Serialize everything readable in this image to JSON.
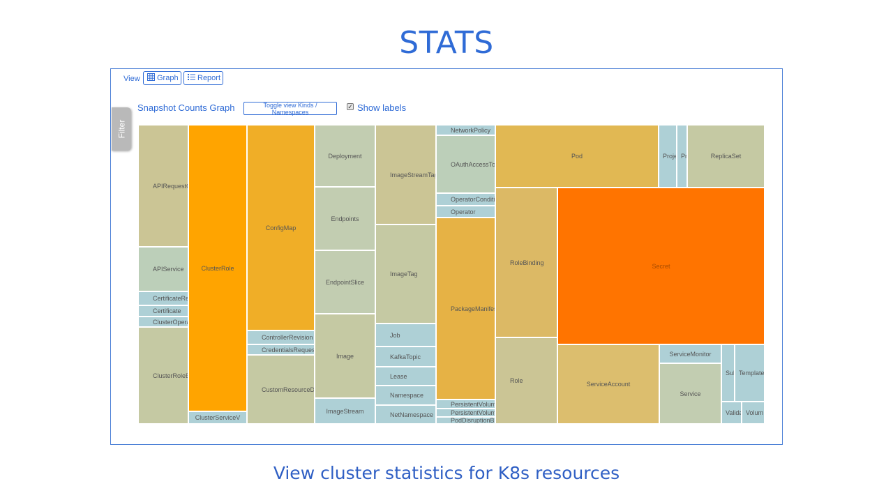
{
  "slide": {
    "title": "STATS",
    "subtitle": "View cluster statistics for K8s resources"
  },
  "toolbar": {
    "view_label": "View",
    "graph_label": "Graph",
    "report_label": "Report"
  },
  "filter_tab": {
    "label": "Filter"
  },
  "graph": {
    "title": "Snapshot Counts Graph",
    "toggle_label": "Toggle view Kinds / Namespaces",
    "show_labels_label": "Show labels",
    "show_labels_checked": true
  },
  "colors": {
    "accent": "#2f6bd6",
    "light_blue": "#aed0d6",
    "sage": "#c2cdb1",
    "khaki": "#cbc595",
    "orange": "#ffa400",
    "amber": "#f0ae27",
    "gold": "#e1b853",
    "hot_orange": "#ff7400"
  },
  "treemap": {
    "cells": [
      {
        "label": "APIRequestCo",
        "color": "#cbc595"
      },
      {
        "label": "APIService",
        "color": "#bccfb9"
      },
      {
        "label": "CertificateRe",
        "color": "#aed0d6"
      },
      {
        "label": "Certificate",
        "color": "#aed0d6"
      },
      {
        "label": "ClusterOperat",
        "color": "#aed0d6"
      },
      {
        "label": "ClusterRoleBin",
        "color": "#c5c9a3"
      },
      {
        "label": "ClusterRole",
        "color": "#ffa400"
      },
      {
        "label": "ClusterServiceV",
        "color": "#aed0d6"
      },
      {
        "label": "ConfigMap",
        "color": "#f0ae27"
      },
      {
        "label": "ControllerRevision",
        "color": "#aed0d6"
      },
      {
        "label": "CredentialsReques",
        "color": "#aed0d6"
      },
      {
        "label": "CustomResourceD",
        "color": "#c5c9a3"
      },
      {
        "label": "Deployment",
        "color": "#c2cdb1"
      },
      {
        "label": "Endpoints",
        "color": "#c2cdb1"
      },
      {
        "label": "EndpointSlice",
        "color": "#c2cdb1"
      },
      {
        "label": "Image",
        "color": "#c5c9a3"
      },
      {
        "label": "ImageStream",
        "color": "#aed0d6"
      },
      {
        "label": "ImageStreamTag",
        "color": "#cbc595"
      },
      {
        "label": "ImageTag",
        "color": "#c5c9a3"
      },
      {
        "label": "Job",
        "color": "#aed0d6"
      },
      {
        "label": "KafkaTopic",
        "color": "#aed0d6"
      },
      {
        "label": "Lease",
        "color": "#aed0d6"
      },
      {
        "label": "Namespace",
        "color": "#aed0d6"
      },
      {
        "label": "NetNamespace",
        "color": "#aed0d6"
      },
      {
        "label": "NetworkPolicy",
        "color": "#aed0d6"
      },
      {
        "label": "OAuthAccessTok",
        "color": "#bccfb9"
      },
      {
        "label": "OperatorConditi",
        "color": "#aed0d6"
      },
      {
        "label": "Operator",
        "color": "#aed0d6"
      },
      {
        "label": "PackageManifes",
        "color": "#e6b245"
      },
      {
        "label": "PersistentVolum",
        "color": "#aed0d6"
      },
      {
        "label": "PersistentVolum",
        "color": "#aed0d6"
      },
      {
        "label": "PodDisruptionBu",
        "color": "#aed0d6"
      },
      {
        "label": "Pod",
        "color": "#e1b853"
      },
      {
        "label": "Proje",
        "color": "#aed0d6"
      },
      {
        "label": "Pro",
        "color": "#aed0d6"
      },
      {
        "label": "ReplicaSet",
        "color": "#c5c9a3"
      },
      {
        "label": "RoleBinding",
        "color": "#dcb965"
      },
      {
        "label": "Role",
        "color": "#cbc595"
      },
      {
        "label": "Secret",
        "color": "#ff7400"
      },
      {
        "label": "ServiceAccount",
        "color": "#dcbe6e"
      },
      {
        "label": "ServiceMonitor",
        "color": "#aed0d6"
      },
      {
        "label": "Service",
        "color": "#c2cdb1"
      },
      {
        "label": "Sub",
        "color": "#aed0d6"
      },
      {
        "label": "Template",
        "color": "#aed0d6"
      },
      {
        "label": "Valida",
        "color": "#aed0d6"
      },
      {
        "label": "Volum",
        "color": "#aed0d6"
      }
    ]
  }
}
